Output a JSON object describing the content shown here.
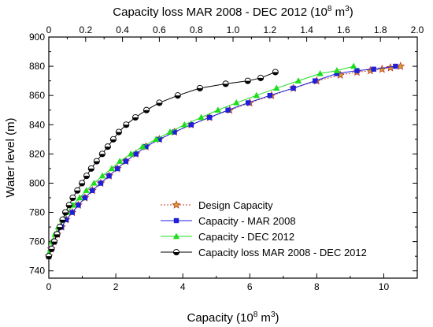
{
  "chart_data": {
    "type": "line",
    "top_axis": {
      "label": "Capacity loss MAR 2008 - DEC 2012 (10",
      "label_sup": "8",
      "label_end": " m",
      "label_sup2": "3",
      "label_close": ")",
      "range": [
        0,
        2.0
      ],
      "ticks": [
        "0",
        "0.2",
        "0.4",
        "0.6",
        "0.8",
        "1.0",
        "1.2",
        "1.4",
        "1.6",
        "1.8",
        "2.0"
      ]
    },
    "bottom_axis": {
      "label": "Capacity (10",
      "label_sup": "8",
      "label_end": " m",
      "label_sup2": "3",
      "label_close": ")",
      "range": [
        0,
        11
      ],
      "ticks": [
        "0",
        "2",
        "4",
        "6",
        "8",
        "10"
      ]
    },
    "y_axis": {
      "label": "Water level (m)",
      "range": [
        735,
        900
      ],
      "ticks": [
        "740",
        "760",
        "780",
        "800",
        "820",
        "840",
        "860",
        "880",
        "900"
      ]
    },
    "legend_position": "bottom-right",
    "series": [
      {
        "name": "Design Capacity",
        "color": "#c0392b",
        "marker": "star",
        "dashed": true,
        "axis": "bottom",
        "points": [
          [
            0.0,
            750
          ],
          [
            0.07,
            755
          ],
          [
            0.15,
            760
          ],
          [
            0.25,
            765
          ],
          [
            0.38,
            770
          ],
          [
            0.52,
            775
          ],
          [
            0.7,
            780
          ],
          [
            0.88,
            785
          ],
          [
            1.08,
            790
          ],
          [
            1.3,
            795
          ],
          [
            1.55,
            800
          ],
          [
            1.8,
            805
          ],
          [
            2.05,
            810
          ],
          [
            2.3,
            815
          ],
          [
            2.6,
            820
          ],
          [
            2.9,
            825
          ],
          [
            3.3,
            830
          ],
          [
            3.75,
            835
          ],
          [
            4.25,
            840
          ],
          [
            4.8,
            845
          ],
          [
            5.4,
            850
          ],
          [
            6.0,
            855
          ],
          [
            6.65,
            860
          ],
          [
            7.3,
            865
          ],
          [
            8.0,
            870
          ],
          [
            8.7,
            874
          ],
          [
            9.2,
            876
          ],
          [
            9.6,
            877
          ],
          [
            9.95,
            878
          ],
          [
            10.2,
            879
          ],
          [
            10.5,
            880
          ]
        ]
      },
      {
        "name": "Capacity - MAR 2008",
        "color": "#1f1fd8",
        "marker": "square",
        "dashed": false,
        "axis": "bottom",
        "points": [
          [
            0.0,
            750
          ],
          [
            0.07,
            755
          ],
          [
            0.15,
            760
          ],
          [
            0.25,
            765
          ],
          [
            0.38,
            770
          ],
          [
            0.52,
            775
          ],
          [
            0.7,
            780
          ],
          [
            0.88,
            785
          ],
          [
            1.08,
            790
          ],
          [
            1.3,
            795
          ],
          [
            1.55,
            800
          ],
          [
            1.8,
            805
          ],
          [
            2.05,
            810
          ],
          [
            2.3,
            815
          ],
          [
            2.6,
            820
          ],
          [
            2.9,
            825
          ],
          [
            3.3,
            830
          ],
          [
            3.75,
            835
          ],
          [
            4.25,
            840
          ],
          [
            4.8,
            845
          ],
          [
            5.35,
            850
          ],
          [
            5.95,
            855
          ],
          [
            6.6,
            860
          ],
          [
            7.3,
            865
          ],
          [
            7.95,
            870
          ],
          [
            8.6,
            875
          ],
          [
            9.2,
            877
          ],
          [
            9.7,
            878
          ],
          [
            10.35,
            880
          ]
        ]
      },
      {
        "name": "Capacity - DEC 2012",
        "color": "#1edc1e",
        "marker": "triangle",
        "dashed": false,
        "axis": "bottom",
        "points": [
          [
            0.0,
            752
          ],
          [
            0.05,
            755
          ],
          [
            0.1,
            760
          ],
          [
            0.18,
            765
          ],
          [
            0.28,
            770
          ],
          [
            0.4,
            775
          ],
          [
            0.55,
            780
          ],
          [
            0.72,
            785
          ],
          [
            0.92,
            790
          ],
          [
            1.12,
            795
          ],
          [
            1.35,
            800
          ],
          [
            1.6,
            805
          ],
          [
            1.88,
            810
          ],
          [
            2.12,
            815
          ],
          [
            2.45,
            820
          ],
          [
            2.8,
            825
          ],
          [
            3.2,
            830
          ],
          [
            3.62,
            835
          ],
          [
            4.05,
            840
          ],
          [
            4.55,
            845
          ],
          [
            5.05,
            850
          ],
          [
            5.6,
            855
          ],
          [
            6.2,
            860
          ],
          [
            6.8,
            865
          ],
          [
            7.45,
            870
          ],
          [
            8.1,
            875
          ],
          [
            8.6,
            877
          ],
          [
            9.1,
            880
          ]
        ]
      },
      {
        "name": "Capacity loss MAR 2008 - DEC 2012",
        "color": "#000000",
        "marker": "halfcircle",
        "dashed": false,
        "axis": "top",
        "points": [
          [
            0.0,
            750
          ],
          [
            0.015,
            755
          ],
          [
            0.03,
            760
          ],
          [
            0.045,
            765
          ],
          [
            0.06,
            770
          ],
          [
            0.075,
            775
          ],
          [
            0.09,
            780
          ],
          [
            0.11,
            785
          ],
          [
            0.13,
            790
          ],
          [
            0.155,
            795
          ],
          [
            0.18,
            800
          ],
          [
            0.205,
            805
          ],
          [
            0.23,
            810
          ],
          [
            0.26,
            815
          ],
          [
            0.29,
            820
          ],
          [
            0.32,
            825
          ],
          [
            0.35,
            830
          ],
          [
            0.38,
            835
          ],
          [
            0.42,
            840
          ],
          [
            0.47,
            845
          ],
          [
            0.53,
            850
          ],
          [
            0.6,
            855
          ],
          [
            0.7,
            860
          ],
          [
            0.82,
            865
          ],
          [
            0.96,
            868
          ],
          [
            1.08,
            870
          ],
          [
            1.15,
            872
          ],
          [
            1.23,
            876
          ]
        ]
      }
    ]
  }
}
